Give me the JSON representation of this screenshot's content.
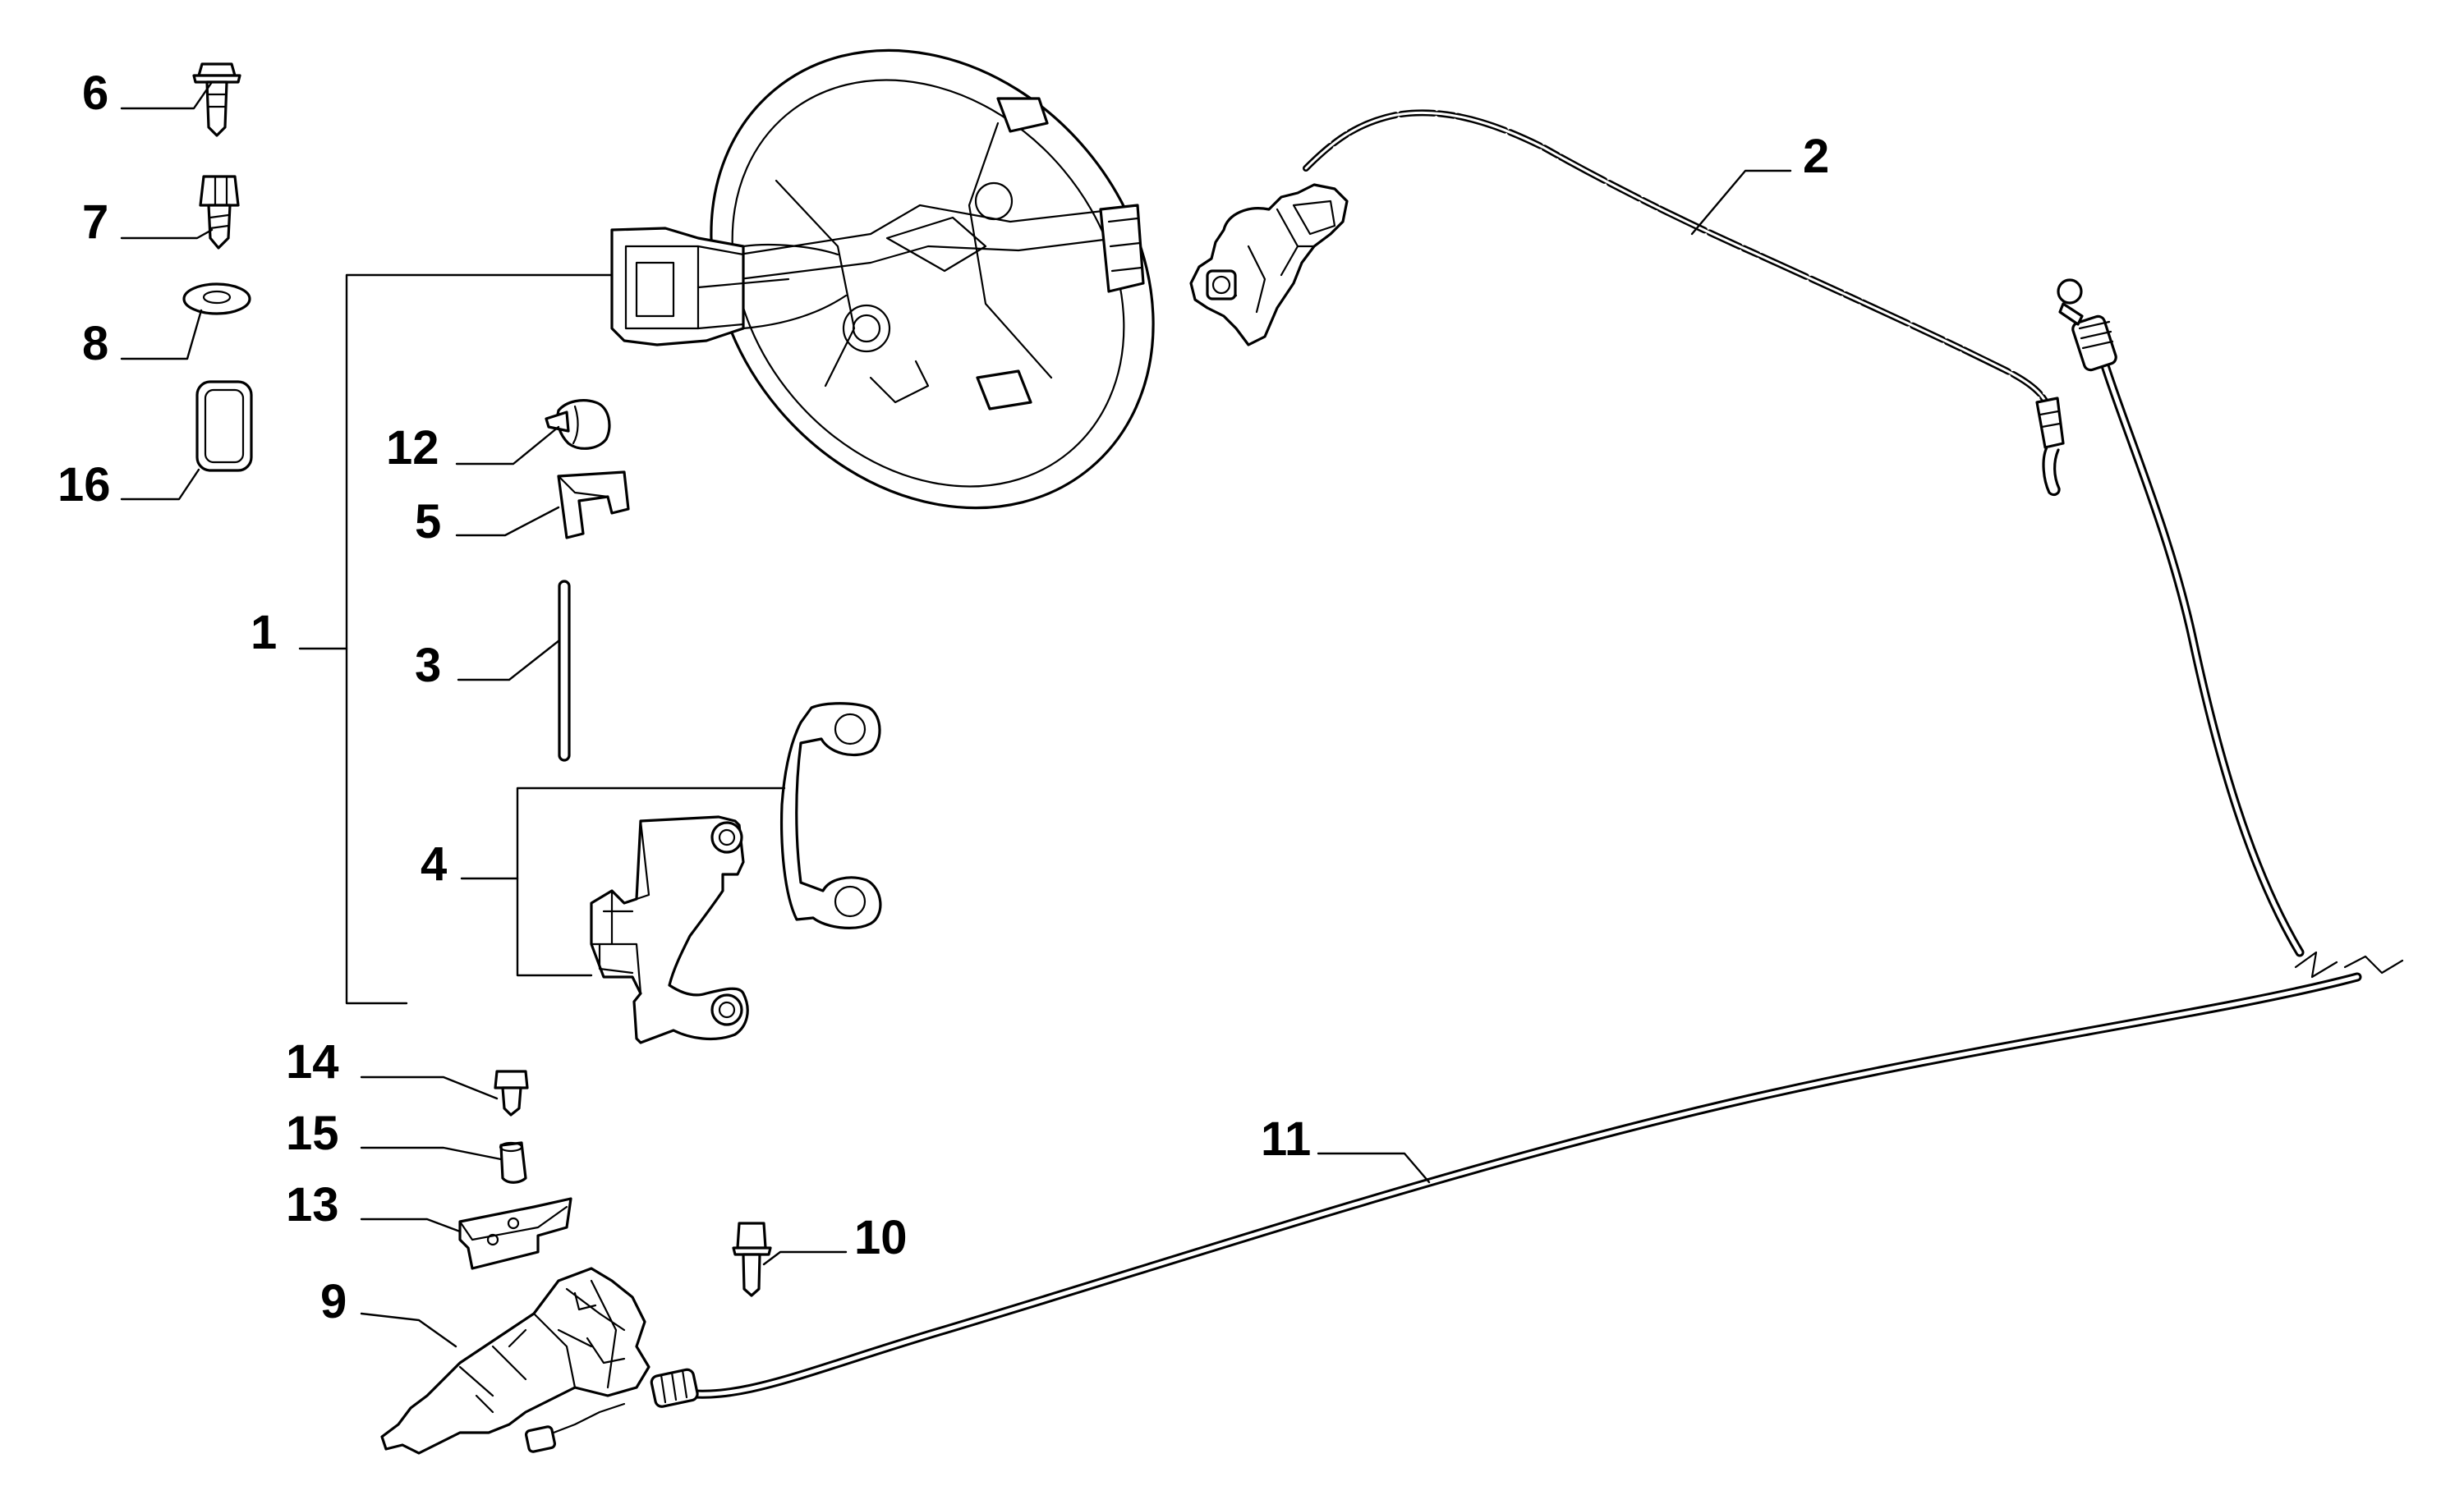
{
  "diagram": {
    "callouts": [
      {
        "id": "1",
        "label": "1"
      },
      {
        "id": "2",
        "label": "2"
      },
      {
        "id": "3",
        "label": "3"
      },
      {
        "id": "4",
        "label": "4"
      },
      {
        "id": "5",
        "label": "5"
      },
      {
        "id": "6",
        "label": "6"
      },
      {
        "id": "7",
        "label": "7"
      },
      {
        "id": "8",
        "label": "8"
      },
      {
        "id": "9",
        "label": "9"
      },
      {
        "id": "10",
        "label": "10"
      },
      {
        "id": "11",
        "label": "11"
      },
      {
        "id": "12",
        "label": "12"
      },
      {
        "id": "13",
        "label": "13"
      },
      {
        "id": "14",
        "label": "14"
      },
      {
        "id": "15",
        "label": "15"
      },
      {
        "id": "16",
        "label": "16"
      }
    ]
  }
}
